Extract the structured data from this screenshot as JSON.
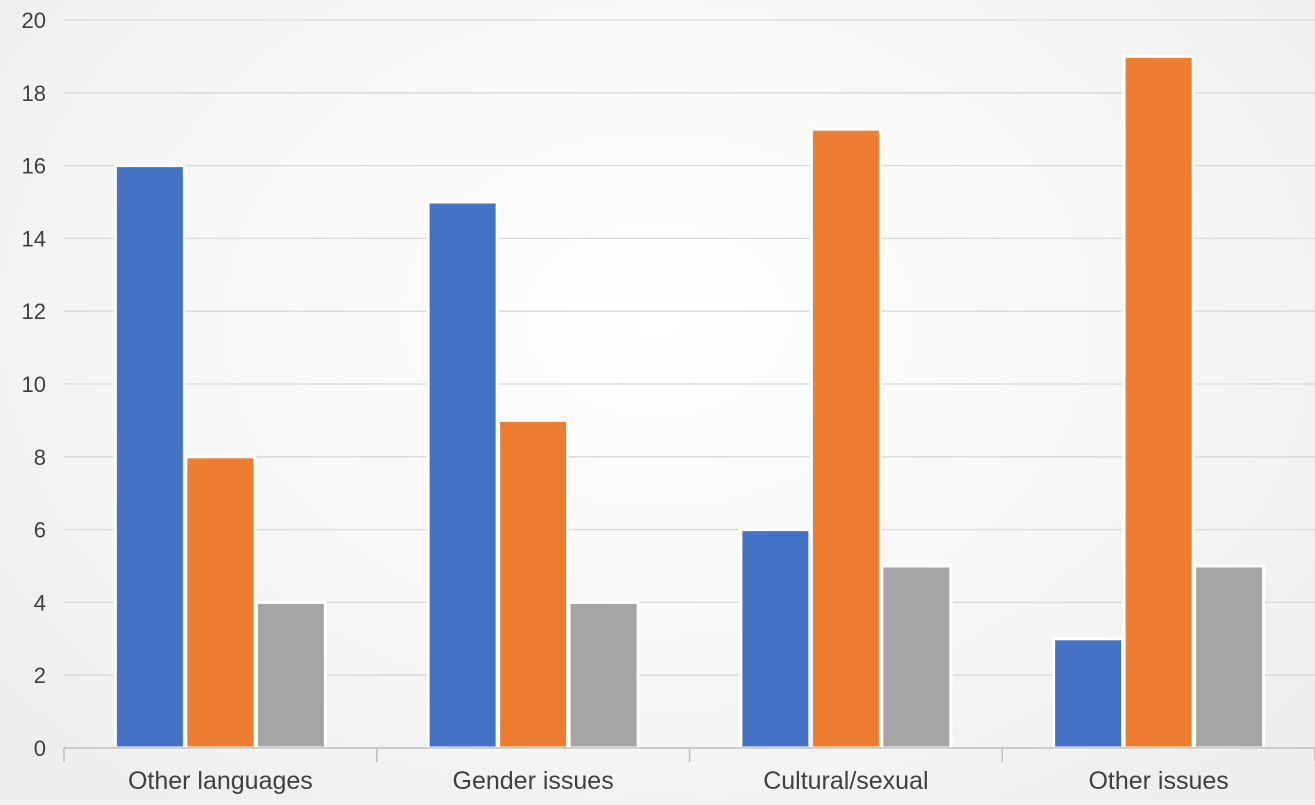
{
  "chart_data": {
    "type": "bar",
    "title": "",
    "xlabel": "",
    "ylabel": "",
    "categories": [
      "Other languages",
      "Gender issues",
      "Cultural/sexual",
      "Other issues"
    ],
    "series": [
      {
        "values": [
          16,
          15,
          6,
          3
        ],
        "color": "#4472c4"
      },
      {
        "values": [
          8,
          9,
          17,
          19
        ],
        "color": "#ed7d31"
      },
      {
        "values": [
          4,
          4,
          5,
          5
        ],
        "color": "#a5a5a5"
      }
    ],
    "ylim": [
      0,
      20
    ],
    "yticks": [
      0,
      2,
      4,
      6,
      8,
      10,
      12,
      14,
      16,
      18,
      20
    ],
    "grid": true,
    "legend": "none"
  }
}
